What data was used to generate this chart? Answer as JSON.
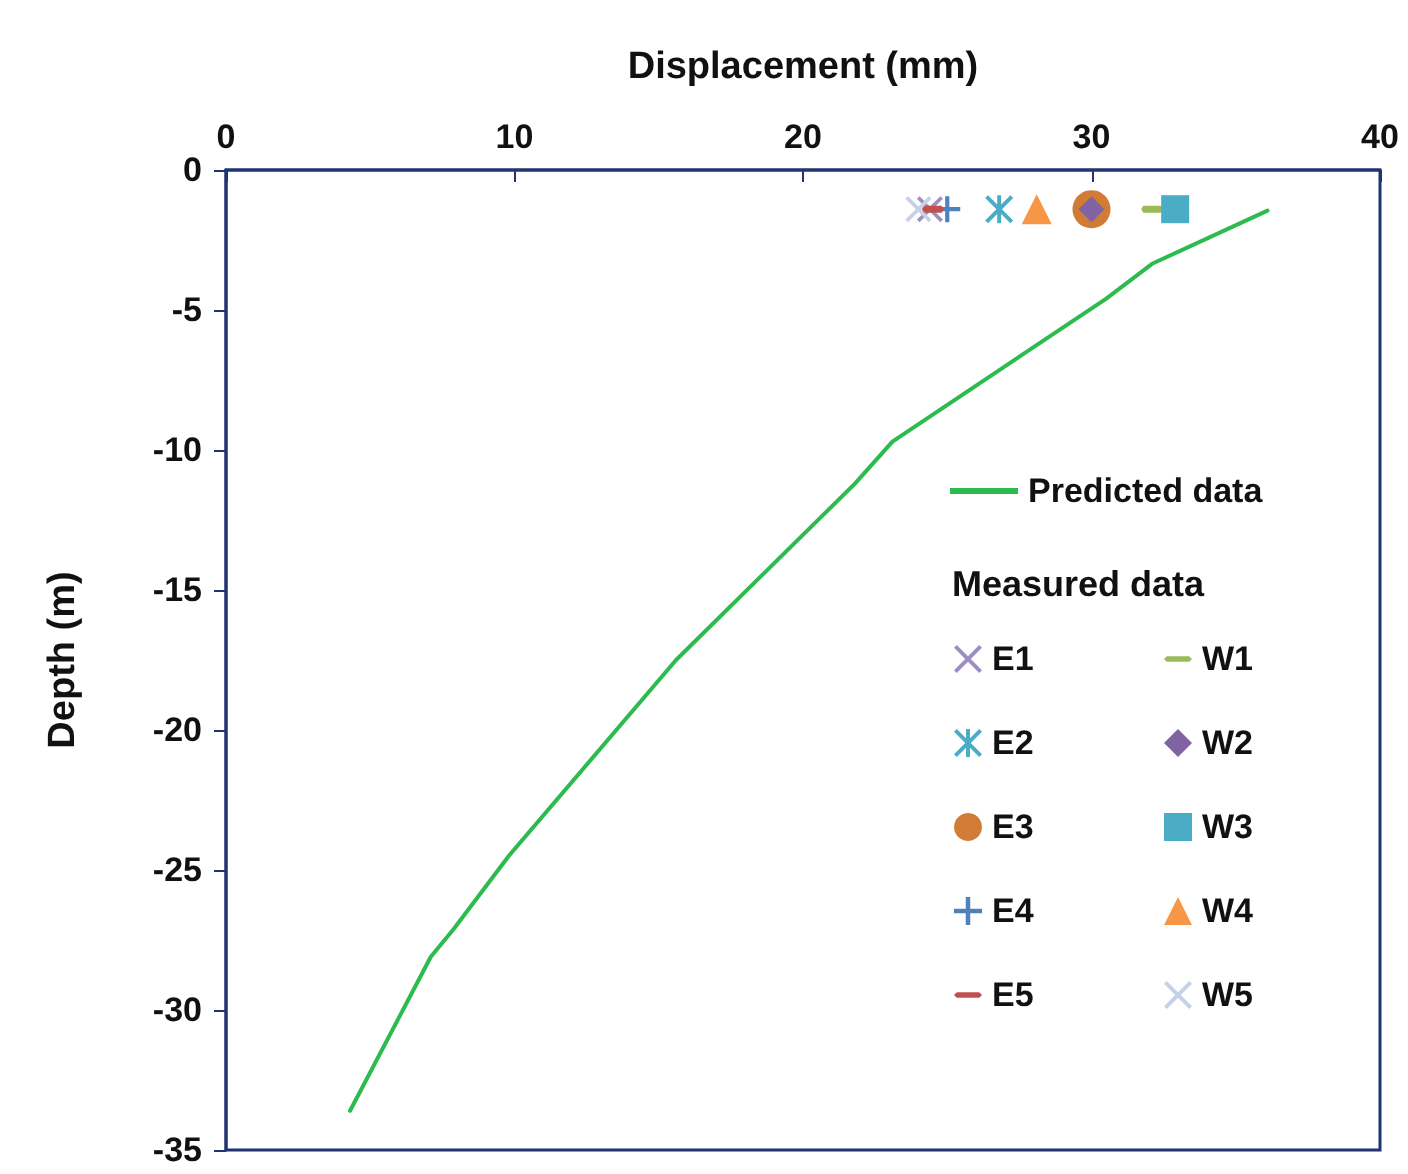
{
  "chart_data": {
    "type": "scatter",
    "xlabel": "Displacement (mm)",
    "ylabel": "Depth (m)",
    "legend_title": "Measured data",
    "legend": "right",
    "grid": false,
    "xlim": [
      0,
      40
    ],
    "xticks": [
      0,
      10,
      20,
      30,
      40
    ],
    "ylim": [
      -35,
      0
    ],
    "yticks": [
      -35,
      -30,
      -25,
      -20,
      -15,
      -10,
      -5,
      0
    ],
    "series": [
      {
        "name": "Predicted data",
        "type": "line",
        "marker": "none",
        "line_style": "solid",
        "color": "#2dbb4f",
        "x": [
          4.3,
          7.1,
          7.9,
          9.8,
          15.6,
          21.8,
          23.1,
          30.5,
          32.1,
          36.1
        ],
        "values": [
          -33.6,
          -28.1,
          -27.1,
          -24.5,
          -17.5,
          -11.2,
          -9.7,
          -4.6,
          -3.35,
          -1.45
        ]
      },
      {
        "name": "E1",
        "marker": "cross",
        "color": "#9b8fc4",
        "x": [
          24.4
        ],
        "values": [
          -1.4
        ]
      },
      {
        "name": "E2",
        "marker": "asterisk",
        "color": "#4bacc6",
        "x": [
          26.8
        ],
        "values": [
          -1.4
        ]
      },
      {
        "name": "E3",
        "marker": "circle",
        "color": "#d07b36",
        "x": [
          30.0
        ],
        "values": [
          -1.4
        ]
      },
      {
        "name": "E4",
        "marker": "plus",
        "color": "#4f81bd",
        "x": [
          25.0
        ],
        "values": [
          -1.4
        ]
      },
      {
        "name": "E5",
        "color": "#c0504d",
        "x": [
          24.5
        ],
        "values": [
          -1.4
        ]
      },
      {
        "name": "W1",
        "color": "#9bbb59",
        "x": [
          32.1
        ],
        "values": [
          -1.4
        ]
      },
      {
        "name": "W2",
        "marker": "diamond",
        "color": "#8064a2",
        "x": [
          30.0
        ],
        "values": [
          -1.4
        ]
      },
      {
        "name": "W3",
        "marker": "square",
        "color": "#4bacc6",
        "x": [
          32.9
        ],
        "values": [
          -1.4
        ]
      },
      {
        "name": "W4",
        "marker": "triangle",
        "color": "#f79646",
        "x": [
          28.1
        ],
        "values": [
          -1.4
        ]
      },
      {
        "name": "W5",
        "marker": "cross",
        "color": "#c6d0e8",
        "x": [
          24.0
        ],
        "values": [
          -1.4
        ]
      }
    ]
  }
}
